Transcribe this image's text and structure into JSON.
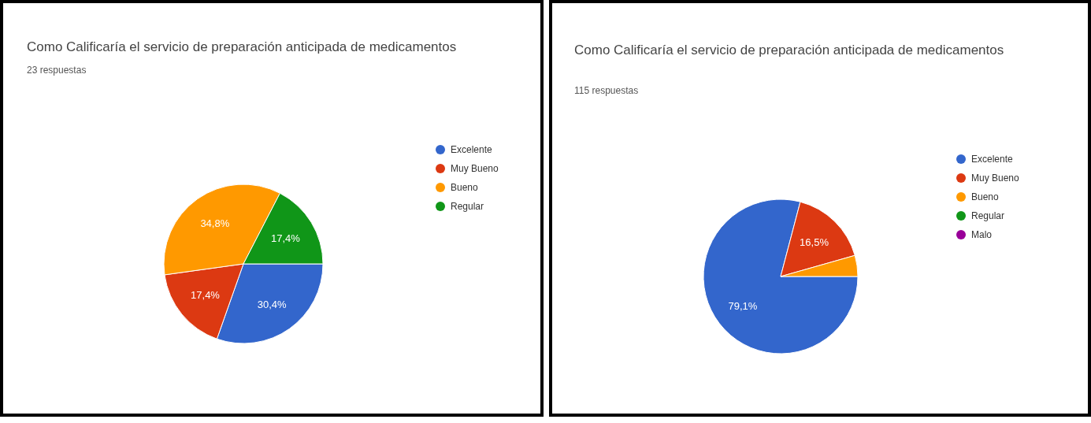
{
  "chart_data": [
    {
      "type": "pie",
      "title": "Como Calificaría el servicio de preparación anticipada de medicamentos",
      "subtitle": "23 respuestas",
      "categories": [
        "Excelente",
        "Muy Bueno",
        "Bueno",
        "Regular"
      ],
      "values": [
        30.4,
        17.4,
        34.8,
        17.4
      ],
      "colors": [
        "#3366cc",
        "#dc3912",
        "#ff9900",
        "#109618"
      ],
      "value_labels": [
        "30,4%",
        "17,4%",
        "34,8%",
        "17,4%"
      ],
      "legend": "right"
    },
    {
      "type": "pie",
      "title": "Como Calificaría el servicio de preparación anticipada de medicamentos",
      "subtitle": "115 respuestas",
      "categories": [
        "Excelente",
        "Muy Bueno",
        "Bueno",
        "Regular",
        "Malo"
      ],
      "values": [
        79.1,
        16.5,
        4.4,
        0,
        0
      ],
      "colors": [
        "#3366cc",
        "#dc3912",
        "#ff9900",
        "#109618",
        "#990099"
      ],
      "value_labels": [
        "79,1%",
        "16,5%",
        null,
        null,
        null
      ],
      "legend": "right"
    }
  ]
}
